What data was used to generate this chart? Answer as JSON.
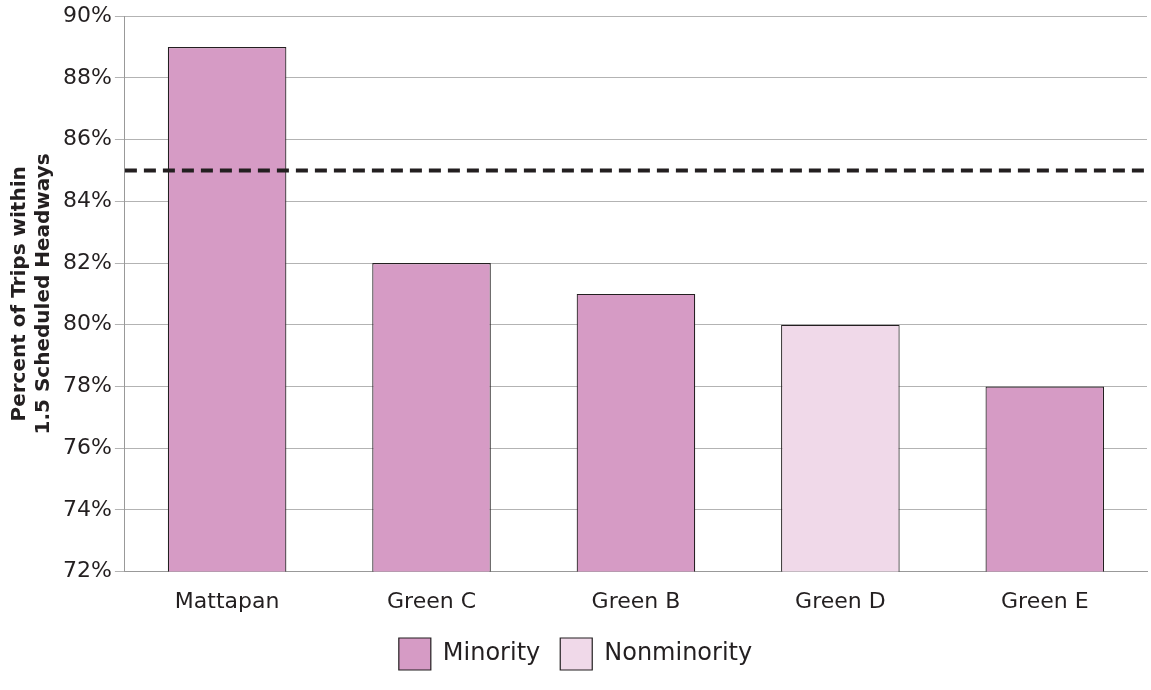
{
  "chart_data": {
    "type": "bar",
    "ylabel": "Percent of Trips within 1.5 Scheduled Headways",
    "categories": [
      "Mattapan",
      "Green C",
      "Green B",
      "Green D",
      "Green E"
    ],
    "series": [
      {
        "name": "Minority",
        "color": "#d69bc5",
        "values": [
          89,
          82,
          81,
          null,
          78
        ]
      },
      {
        "name": "Nonminority",
        "color": "#f0d9e9",
        "values": [
          null,
          null,
          null,
          80,
          null
        ]
      }
    ],
    "ylim": [
      72,
      90
    ],
    "yticks": [
      {
        "value": 72,
        "label": "72%"
      },
      {
        "value": 74,
        "label": "74%"
      },
      {
        "value": 76,
        "label": "76%"
      },
      {
        "value": 78,
        "label": "78%"
      },
      {
        "value": 80,
        "label": "80%"
      },
      {
        "value": 82,
        "label": "82%"
      },
      {
        "value": 84,
        "label": "84%"
      },
      {
        "value": 86,
        "label": "86%"
      },
      {
        "value": 88,
        "label": "88%"
      },
      {
        "value": 90,
        "label": "90%"
      }
    ],
    "ref_lines": [
      {
        "axis": "y",
        "value": 85,
        "color": "#231f20",
        "line_style": "dashed"
      }
    ],
    "grid": "y",
    "legend": "bottom"
  }
}
